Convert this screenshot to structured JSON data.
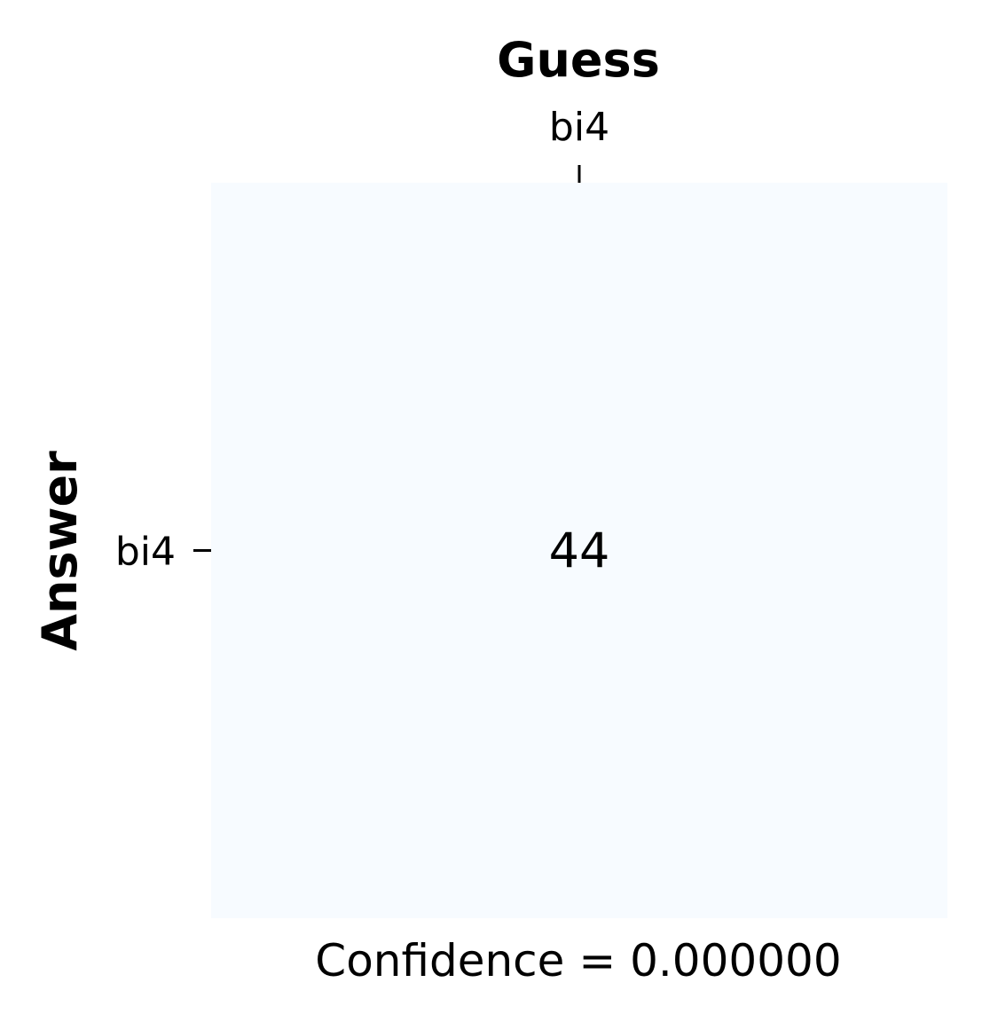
{
  "chart_data": {
    "type": "heatmap",
    "xlabel": "Guess",
    "ylabel": "Answer",
    "x_categories": [
      "bi4"
    ],
    "y_categories": [
      "bi4"
    ],
    "matrix": [
      [
        44
      ]
    ],
    "colormap": "Blues",
    "cell_color": "#f7fbff",
    "x_axis_position": "top",
    "annotation": "Confidence = 0.000000",
    "grid": false,
    "legend": false
  }
}
